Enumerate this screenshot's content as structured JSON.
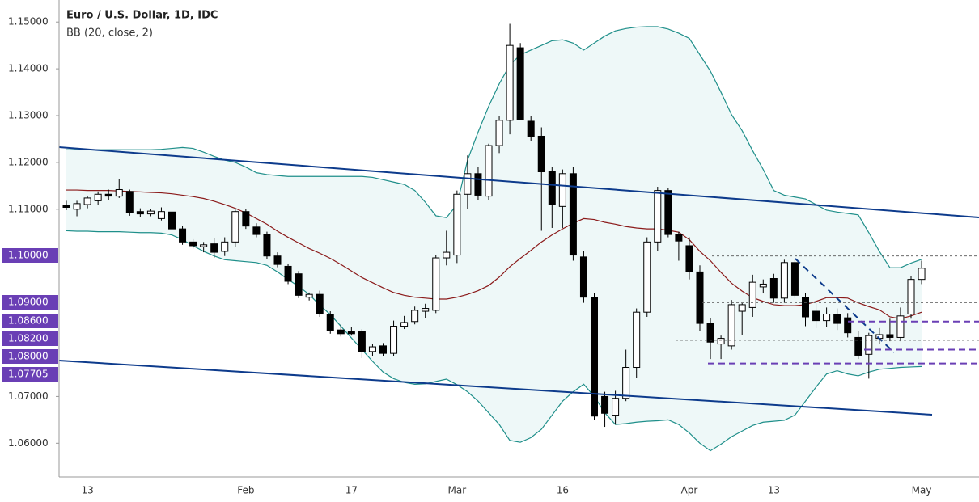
{
  "chart_data": {
    "type": "candlestick",
    "title": "Euro / U.S. Dollar, 1D, IDC",
    "subtitle": "BB (20, close, 2)",
    "categories": [
      null,
      null,
      "13",
      null,
      null,
      null,
      null,
      null,
      null,
      null,
      null,
      null,
      null,
      null,
      null,
      null,
      null,
      "Feb",
      null,
      null,
      null,
      null,
      null,
      null,
      null,
      null,
      null,
      "17",
      null,
      null,
      null,
      null,
      null,
      null,
      null,
      null,
      null,
      "Mar",
      null,
      null,
      null,
      null,
      null,
      null,
      null,
      null,
      null,
      "16",
      null,
      null,
      null,
      null,
      null,
      null,
      null,
      null,
      null,
      null,
      null,
      "Apr",
      null,
      null,
      null,
      null,
      null,
      null,
      null,
      "13",
      null,
      null,
      null,
      null,
      null,
      null,
      null,
      null,
      null,
      null,
      null,
      null,
      null,
      "May"
    ],
    "open": [
      1.1108,
      1.11,
      1.111,
      1.1118,
      1.1132,
      1.1128,
      1.1138,
      1.1095,
      1.109,
      1.108,
      1.1094,
      1.1058,
      1.103,
      1.102,
      1.1026,
      1.101,
      1.103,
      1.1095,
      1.1062,
      1.1046,
      1.1,
      1.0978,
      1.0962,
      1.0912,
      1.0918,
      1.0876,
      1.0842,
      1.0838,
      1.0838,
      1.0796,
      1.0808,
      1.0792,
      1.085,
      1.086,
      1.0882,
      1.0884,
      1.0996,
      1.1002,
      1.1132,
      1.1176,
      1.1128,
      1.1236,
      1.129,
      1.1445,
      1.1288,
      1.1256,
      1.118,
      1.1106,
      1.1176,
      1.0998,
      1.0912,
      1.07,
      1.066,
      1.0696,
      1.0762,
      1.088,
      1.103,
      1.114,
      1.1046,
      1.1022,
      1.0966,
      1.0856,
      1.0812,
      1.0808,
      1.0882,
      1.089,
      1.0934,
      1.0952,
      1.091,
      1.0986,
      1.0912,
      1.0882,
      1.0862,
      1.0876,
      1.0868,
      1.0826,
      1.079,
      1.0824,
      1.0832,
      1.0826,
      1.0876,
      1.095
    ],
    "high": [
      1.1118,
      1.1118,
      1.1128,
      1.1138,
      1.1142,
      1.1165,
      1.1142,
      1.1102,
      1.11,
      1.1104,
      1.1098,
      1.1064,
      1.1036,
      1.103,
      1.1038,
      1.104,
      1.1102,
      1.11,
      1.107,
      1.1052,
      1.1008,
      1.0984,
      1.0968,
      1.0922,
      1.0926,
      1.0882,
      1.0854,
      1.0848,
      1.0844,
      1.0812,
      1.0814,
      1.0862,
      1.0872,
      1.0892,
      1.0898,
      1.1002,
      1.1054,
      1.114,
      1.1215,
      1.119,
      1.124,
      1.13,
      1.1496,
      1.1455,
      1.13,
      1.1275,
      1.119,
      1.1185,
      1.119,
      1.101,
      1.092,
      1.071,
      1.0712,
      1.08,
      1.0888,
      1.104,
      1.1148,
      1.1146,
      1.1052,
      1.104,
      1.098,
      1.0868,
      1.083,
      1.0906,
      1.09,
      1.096,
      1.095,
      1.0962,
      1.0992,
      1.0992,
      1.092,
      1.09,
      1.089,
      1.0888,
      1.0878,
      1.084,
      1.0836,
      1.0846,
      1.0866,
      1.089,
      1.0958,
      1.099
    ],
    "low": [
      1.1098,
      1.1085,
      1.1102,
      1.111,
      1.112,
      1.1124,
      1.1086,
      1.1084,
      1.1085,
      1.1076,
      1.1052,
      1.1024,
      1.1016,
      1.1008,
      1.0996,
      1.1,
      1.102,
      1.1058,
      1.104,
      1.0994,
      1.0976,
      1.094,
      1.091,
      1.0905,
      1.087,
      1.0834,
      1.0828,
      1.083,
      1.0782,
      1.0786,
      1.0786,
      1.0786,
      1.0844,
      1.0854,
      1.0868,
      1.0878,
      1.098,
      1.0985,
      1.11,
      1.112,
      1.112,
      1.122,
      1.126,
      1.13,
      1.1245,
      1.1054,
      1.106,
      1.106,
      1.099,
      1.09,
      1.065,
      1.0635,
      1.064,
      1.069,
      1.074,
      1.087,
      1.101,
      1.104,
      1.099,
      1.095,
      1.084,
      1.078,
      1.078,
      1.08,
      1.0832,
      1.087,
      1.092,
      1.09,
      1.09,
      1.091,
      1.085,
      1.0846,
      1.0848,
      1.0842,
      1.0826,
      1.078,
      1.0738,
      1.0812,
      1.0818,
      1.0818,
      1.0866,
      1.094
    ],
    "close": [
      1.1104,
      1.1112,
      1.1124,
      1.1132,
      1.1128,
      1.1142,
      1.1092,
      1.109,
      1.1096,
      1.1095,
      1.1058,
      1.103,
      1.1022,
      1.1024,
      1.1008,
      1.103,
      1.1095,
      1.1064,
      1.1046,
      1.1,
      1.0982,
      1.0946,
      1.0916,
      1.0918,
      1.0876,
      1.084,
      1.0834,
      1.0834,
      1.0796,
      1.0806,
      1.0792,
      1.085,
      1.0858,
      1.0884,
      1.0888,
      1.0996,
      1.1008,
      1.1132,
      1.1176,
      1.113,
      1.1236,
      1.129,
      1.145,
      1.1292,
      1.1256,
      1.118,
      1.111,
      1.1176,
      1.1002,
      1.0912,
      1.0658,
      1.0664,
      1.0696,
      1.0762,
      1.088,
      1.103,
      1.114,
      1.1046,
      1.1032,
      1.0966,
      1.0856,
      1.0816,
      1.0824,
      1.0896,
      1.0896,
      1.0944,
      1.094,
      1.091,
      1.0986,
      1.0916,
      1.087,
      1.0862,
      1.0876,
      1.0856,
      1.0836,
      1.0788,
      1.083,
      1.0832,
      1.0826,
      1.0872,
      1.095,
      1.0974
    ],
    "bands": {
      "color": "#1f8f8a",
      "fill": "#eef8f8",
      "basis_color": "#8b1a1a",
      "upper": [
        1.1227,
        1.1227,
        1.1227,
        1.1227,
        1.1227,
        1.1227,
        1.1227,
        1.1227,
        1.1227,
        1.1228,
        1.123,
        1.1232,
        1.123,
        1.1222,
        1.1213,
        1.1205,
        1.12,
        1.119,
        1.1178,
        1.1174,
        1.1172,
        1.117,
        1.117,
        1.117,
        1.117,
        1.117,
        1.117,
        1.117,
        1.117,
        1.1168,
        1.1163,
        1.1158,
        1.1153,
        1.114,
        1.1115,
        1.1086,
        1.1082,
        1.111,
        1.1205,
        1.1265,
        1.132,
        1.1368,
        1.1408,
        1.143,
        1.144,
        1.145,
        1.146,
        1.1462,
        1.1455,
        1.144,
        1.1455,
        1.147,
        1.1481,
        1.1486,
        1.1489,
        1.149,
        1.149,
        1.1485,
        1.1476,
        1.1465,
        1.143,
        1.1395,
        1.135,
        1.1302,
        1.1268,
        1.1225,
        1.1185,
        1.114,
        1.113,
        1.1126,
        1.1122,
        1.111,
        1.1098,
        1.1094,
        1.1091,
        1.1088,
        1.105,
        1.101,
        1.0975,
        1.0975,
        1.0985,
        1.0993
      ],
      "basis": [
        1.1141,
        1.1141,
        1.114,
        1.114,
        1.114,
        1.1139,
        1.1138,
        1.1137,
        1.1136,
        1.1135,
        1.1133,
        1.113,
        1.1127,
        1.1123,
        1.1117,
        1.111,
        1.1102,
        1.1092,
        1.108,
        1.1068,
        1.1053,
        1.104,
        1.1028,
        1.1016,
        1.1006,
        1.0995,
        1.0982,
        1.0968,
        1.0954,
        1.0943,
        1.0932,
        1.0922,
        1.0916,
        1.0912,
        1.091,
        1.0908,
        1.0908,
        1.0912,
        1.0918,
        1.0926,
        1.0937,
        1.0955,
        1.0977,
        1.0995,
        1.1012,
        1.103,
        1.1045,
        1.1058,
        1.107,
        1.108,
        1.1078,
        1.1072,
        1.1068,
        1.1063,
        1.106,
        1.1058,
        1.1058,
        1.1055,
        1.1051,
        1.1035,
        1.101,
        1.099,
        1.0965,
        1.0942,
        1.0925,
        1.0911,
        1.0903,
        1.0896,
        1.0894,
        1.0894,
        1.0896,
        1.0903,
        1.0911,
        1.0911,
        1.091,
        1.09,
        1.0892,
        1.0885,
        1.087,
        1.0866,
        1.0872,
        1.088
      ],
      "lower": [
        1.1054,
        1.1053,
        1.1053,
        1.1052,
        1.1052,
        1.1052,
        1.1051,
        1.105,
        1.105,
        1.1049,
        1.1045,
        1.1035,
        1.1022,
        1.101,
        1.1,
        1.0992,
        1.099,
        1.0988,
        1.0986,
        1.098,
        1.0966,
        1.095,
        1.0935,
        1.0918,
        1.0895,
        1.0875,
        1.085,
        1.0825,
        1.08,
        1.0775,
        1.0752,
        1.0738,
        1.073,
        1.0726,
        1.0727,
        1.0732,
        1.0737,
        1.0725,
        1.071,
        1.069,
        1.0665,
        1.064,
        1.0606,
        1.0602,
        1.0612,
        1.063,
        1.066,
        1.069,
        1.071,
        1.0726,
        1.07,
        1.0665,
        1.064,
        1.0642,
        1.0645,
        1.0647,
        1.0648,
        1.065,
        1.064,
        1.0622,
        1.06,
        1.0584,
        1.0598,
        1.0614,
        1.0626,
        1.0638,
        1.0645,
        1.0647,
        1.0649,
        1.066,
        1.069,
        1.072,
        1.0748,
        1.0755,
        1.0748,
        1.0744,
        1.0752,
        1.0758,
        1.076,
        1.0762,
        1.0763,
        1.0764
      ]
    },
    "ylim": [
      1.0528,
      1.1547
    ],
    "yticks": [
      {
        "value": 1.06,
        "label": "1.06000"
      },
      {
        "value": 1.07,
        "label": "1.07000"
      },
      {
        "value": 1.11,
        "label": "1.11000"
      },
      {
        "value": 1.12,
        "label": "1.12000"
      },
      {
        "value": 1.13,
        "label": "1.13000"
      },
      {
        "value": 1.14,
        "label": "1.14000"
      },
      {
        "value": 1.15,
        "label": "1.15000"
      }
    ],
    "levels": [
      {
        "value": 1.1,
        "label": "1.10000"
      },
      {
        "value": 1.09,
        "label": "1.09000"
      },
      {
        "value": 1.086,
        "label": "1.08600"
      },
      {
        "value": 1.082,
        "label": "1.08200"
      },
      {
        "value": 1.08,
        "label": "1.08000"
      },
      {
        "value": 1.07705,
        "label": "1.07705"
      }
    ],
    "level_color": "#6a3fb5",
    "trend_color": "#0d3b8c"
  }
}
